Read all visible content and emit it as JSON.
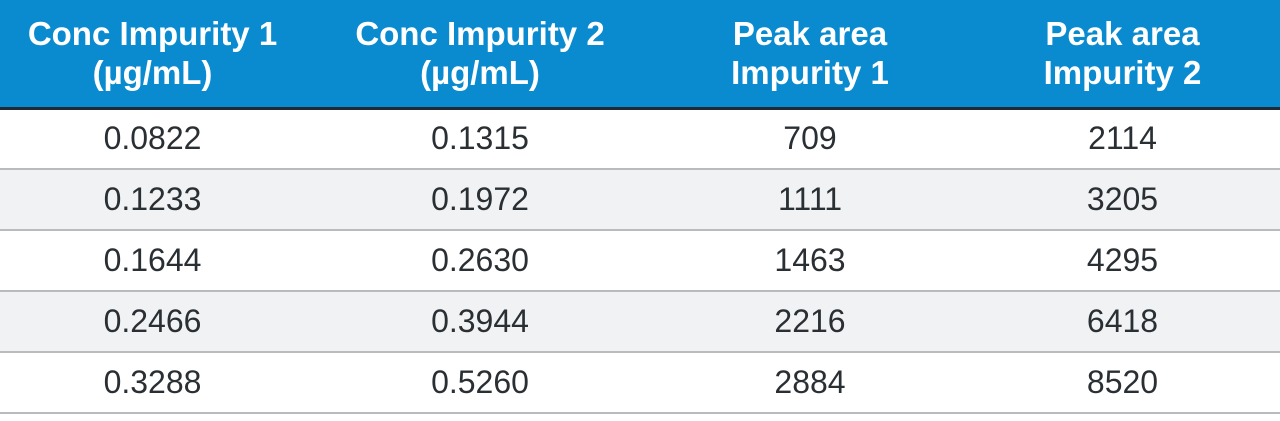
{
  "chart_data": {
    "type": "table",
    "columns": [
      [
        "Conc Impurity 1",
        "(µg/mL)"
      ],
      [
        "Conc Impurity 2",
        "(µg/mL)"
      ],
      [
        "Peak area",
        "Impurity 1"
      ],
      [
        "Peak area",
        "Impurity 2"
      ]
    ],
    "rows": [
      [
        "0.0822",
        "0.1315",
        "709",
        "2114"
      ],
      [
        "0.1233",
        "0.1972",
        "1111",
        "3205"
      ],
      [
        "0.1644",
        "0.2630",
        "1463",
        "4295"
      ],
      [
        "0.2466",
        "0.3944",
        "2216",
        "6418"
      ],
      [
        "0.3288",
        "0.5260",
        "2884",
        "8520"
      ]
    ]
  },
  "colors": {
    "header_bg": "#0a8bd0",
    "header_text": "#ffffff",
    "row_alt_bg": "#f1f2f3",
    "body_text": "#2a2f33"
  }
}
